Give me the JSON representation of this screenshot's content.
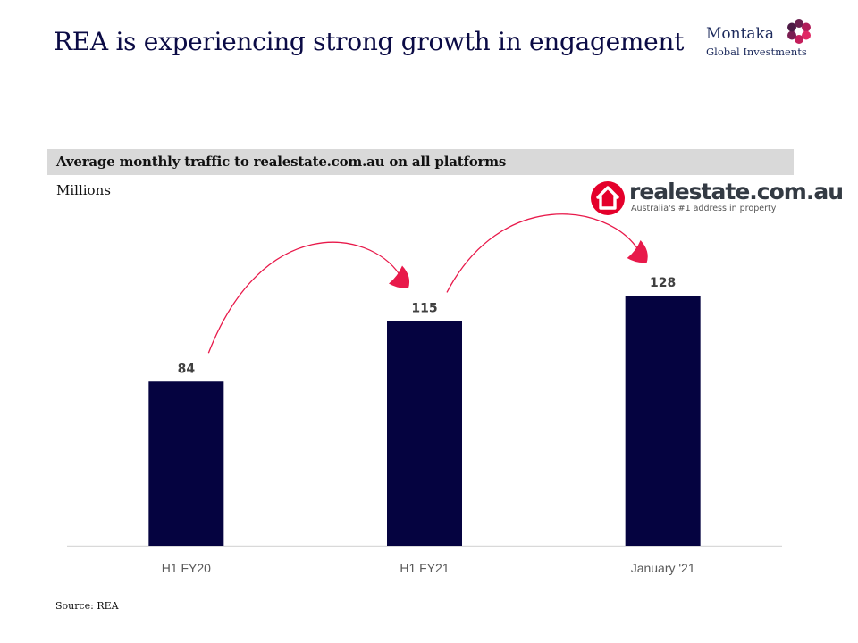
{
  "header": {
    "title": "REA is experiencing strong growth in engagement",
    "logo": {
      "line1": "Montaka",
      "line2": "Global Investments"
    }
  },
  "brand": {
    "name": "realestate.com.au",
    "tagline": "Australia's #1 address in property",
    "icon": "house-icon"
  },
  "colors": {
    "bar": "#050340",
    "arrow": "#e8194a",
    "title": "#0b0b45",
    "band": "#d9d9d9",
    "brand_red": "#e4002b"
  },
  "chart_data": {
    "type": "bar",
    "title": "Average monthly traffic to realestate.com.au on all platforms",
    "ylabel": "Millions",
    "xlabel": "",
    "categories": [
      "H1 FY20",
      "H1 FY21",
      "January '21"
    ],
    "values": [
      84,
      115,
      128
    ],
    "data_labels": [
      "84",
      "115",
      "128"
    ],
    "ylim": [
      0,
      160
    ],
    "grid": false,
    "annotations": [
      {
        "type": "arrow",
        "from": "H1 FY20",
        "to": "H1 FY21"
      },
      {
        "type": "arrow",
        "from": "H1 FY21",
        "to": "January '21"
      }
    ]
  },
  "footer": {
    "source": "Source: REA"
  }
}
